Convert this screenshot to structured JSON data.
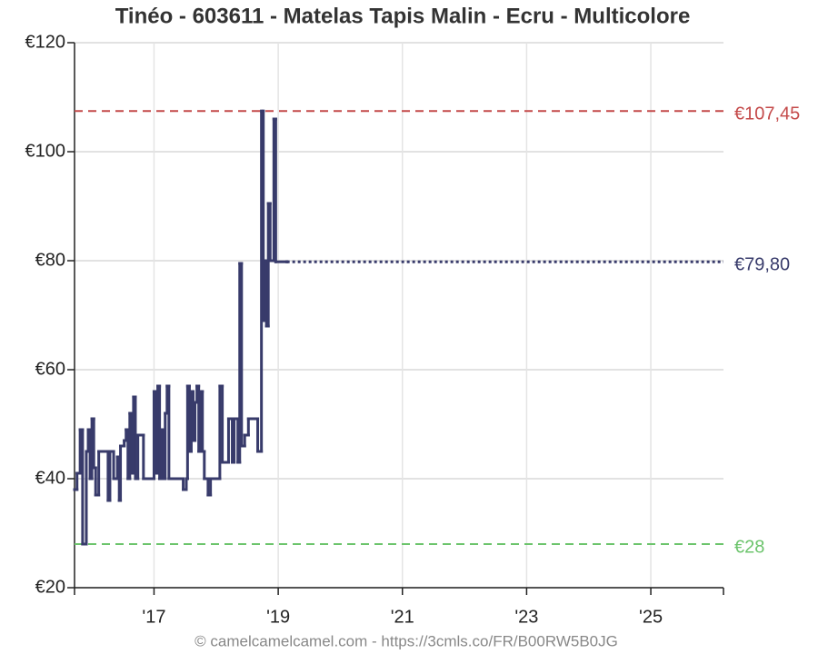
{
  "chart_data": {
    "type": "step",
    "title": "Tinéo - 603611 - Matelas Tapis Malin - Ecru - Multicolore",
    "footer": "© camelcamelcamel.com - https://3cmls.co/FR/B00RW5B0JG",
    "x": [
      2015.72,
      2015.76,
      2015.81,
      2015.85,
      2015.91,
      2015.94,
      2015.97,
      2016.0,
      2016.03,
      2016.06,
      2016.11,
      2016.23,
      2016.26,
      2016.29,
      2016.35,
      2016.41,
      2016.44,
      2016.46,
      2016.52,
      2016.55,
      2016.58,
      2016.61,
      2016.64,
      2016.67,
      2016.7,
      2016.74,
      2016.83,
      2017.0,
      2017.03,
      2017.06,
      2017.09,
      2017.12,
      2017.15,
      2017.18,
      2017.21,
      2017.24,
      2017.47,
      2017.52,
      2017.54,
      2017.57,
      2017.6,
      2017.63,
      2017.66,
      2017.69,
      2017.72,
      2017.75,
      2017.78,
      2017.81,
      2017.87,
      2017.91,
      2018.06,
      2018.1,
      2018.2,
      2018.26,
      2018.29,
      2018.35,
      2018.38,
      2018.41,
      2018.46,
      2018.52,
      2018.67,
      2018.73,
      2018.76,
      2018.79,
      2018.81,
      2018.84,
      2018.87,
      2018.93,
      2018.96,
      2019.14
    ],
    "series": [
      {
        "color": "#383b6b",
        "values": [
          38,
          41,
          49,
          28,
          45,
          49,
          40,
          51,
          42,
          37,
          45,
          45,
          36,
          45,
          40,
          44,
          36,
          46,
          47,
          49,
          40,
          52,
          41,
          55,
          40,
          48,
          40,
          56,
          41,
          57,
          40,
          49,
          40,
          52,
          57,
          40,
          38,
          40,
          57,
          45,
          56,
          47,
          54,
          57,
          45,
          56,
          45,
          40,
          37,
          40,
          57,
          43,
          51,
          43,
          51,
          43,
          79.5,
          46,
          48,
          51,
          45,
          107.45,
          69,
          80,
          68,
          90.5,
          80,
          106,
          79.8,
          79.8
        ]
      }
    ],
    "reference_lines": [
      {
        "value": 107.45,
        "label": "€107,45",
        "color": "#c44a4a",
        "style": "dashed"
      },
      {
        "value": 79.8,
        "label": "€79,80",
        "color": "#383b6b",
        "style": "dotted"
      },
      {
        "value": 28,
        "label": "€28",
        "color": "#6cc46c",
        "style": "dashed"
      }
    ],
    "xlim": [
      2015.72,
      2026.17
    ],
    "xticks": [
      {
        "value": 2017,
        "label": "'17"
      },
      {
        "value": 2019,
        "label": "'19"
      },
      {
        "value": 2021,
        "label": "'21"
      },
      {
        "value": 2023,
        "label": "'23"
      },
      {
        "value": 2025,
        "label": "'25"
      }
    ],
    "ylim": [
      20,
      120
    ],
    "yticks": [
      {
        "value": 20,
        "label": "€20"
      },
      {
        "value": 40,
        "label": "€40"
      },
      {
        "value": 60,
        "label": "€60"
      },
      {
        "value": 80,
        "label": "€80"
      },
      {
        "value": 100,
        "label": "€100"
      },
      {
        "value": 120,
        "label": "€120"
      }
    ],
    "grid": true
  }
}
